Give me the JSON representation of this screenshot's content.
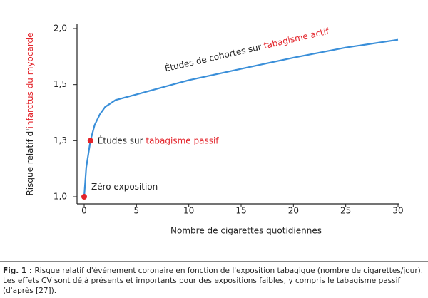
{
  "chart_data": {
    "type": "line",
    "y_label_parts": [
      "Risque relatif d'",
      "infarctus du myocarde"
    ],
    "x_label": "Nombre de cigarettes quotidiennes",
    "x": [
      0,
      0.2,
      0.6,
      1,
      1.5,
      2,
      3,
      5,
      10,
      15,
      20,
      25,
      30
    ],
    "series": [
      {
        "color": "#3a8fd9",
        "values": [
          1.0,
          1.156,
          1.3,
          1.356,
          1.394,
          1.42,
          1.445,
          1.465,
          1.54,
          1.64,
          1.74,
          1.83,
          1.9
        ]
      }
    ],
    "points": [
      {
        "x": 0,
        "y": 1.0,
        "label_parts": [
          "Zéro exposition"
        ]
      },
      {
        "x": 0.6,
        "y": 1.3,
        "label_parts": [
          "Études sur ",
          "tabagisme passif"
        ]
      }
    ],
    "curve_label_parts": [
      "Études de cohortes sur ",
      "tabagisme actif"
    ],
    "accent_color": "#e3242b",
    "xlim": [
      0,
      30
    ],
    "ylim": [
      1.0,
      2.0
    ],
    "xticks": [
      0,
      5,
      10,
      15,
      20,
      25,
      30
    ],
    "yticks": [
      {
        "value": 1.0,
        "label": "1,0"
      },
      {
        "value": 1.3,
        "label": "1,3"
      },
      {
        "value": 1.5,
        "label": "1,5"
      },
      {
        "value": 2.0,
        "label": "2,0"
      }
    ],
    "y_scale": "piecewise"
  },
  "caption": {
    "label": "Fig. 1 :",
    "text": "Risque relatif d'événement coronaire en fonction de l'exposition tabagique (nombre de cigarettes/jour). Les effets CV sont déjà présents et importants pour des expositions faibles, y compris le tabagisme passif (d'après [27])."
  }
}
